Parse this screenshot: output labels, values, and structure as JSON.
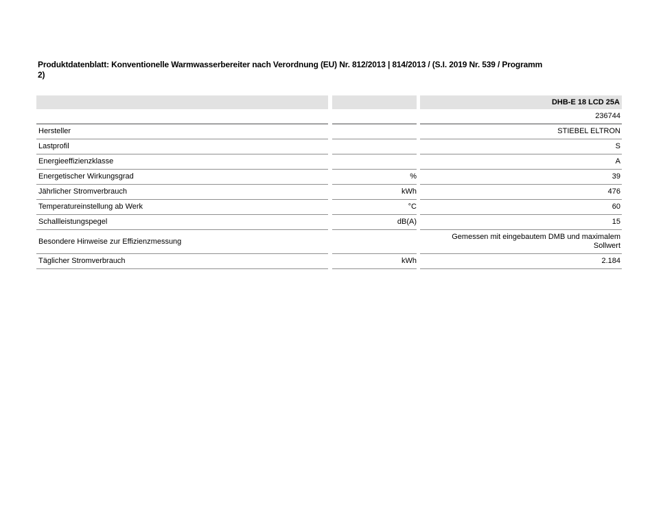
{
  "page": {
    "title_line1": "Produktdatenblatt: Konventionelle Warmwasserbereiter nach Verordnung (EU) Nr. 812/2013 | 814/2013 / (S.I. 2019 Nr. 539 / Programm",
    "title_line2": "2)"
  },
  "table": {
    "header": {
      "label": "",
      "unit": "",
      "model": "DHB-E 18 LCD 25A"
    },
    "rows": [
      {
        "label": "",
        "unit": "",
        "value": "236744"
      },
      {
        "label": "Hersteller",
        "unit": "",
        "value": "STIEBEL ELTRON"
      },
      {
        "label": "Lastprofil",
        "unit": "",
        "value": "S"
      },
      {
        "label": "Energieeffizienzklasse",
        "unit": "",
        "value": "A"
      },
      {
        "label": "Energetischer Wirkungsgrad",
        "unit": "%",
        "value": "39"
      },
      {
        "label": "Jährlicher Stromverbrauch",
        "unit": "kWh",
        "value": "476"
      },
      {
        "label": "Temperatureinstellung ab Werk",
        "unit": "°C",
        "value": "60"
      },
      {
        "label": "Schallleistungspegel",
        "unit": "dB(A)",
        "value": "15"
      },
      {
        "label": "Besondere Hinweise zur Effizienzmessung",
        "unit": "",
        "value": "Gemessen mit eingebautem DMB und maximalem Sollwert"
      },
      {
        "label": "Täglicher Stromverbrauch",
        "unit": "kWh",
        "value": "2.184"
      }
    ],
    "colors": {
      "header_bg": "#e2e2e2",
      "row_border": "#8e8e8e",
      "top_row_border": "#4d4d4f",
      "text": "#000000",
      "background": "#ffffff"
    }
  }
}
